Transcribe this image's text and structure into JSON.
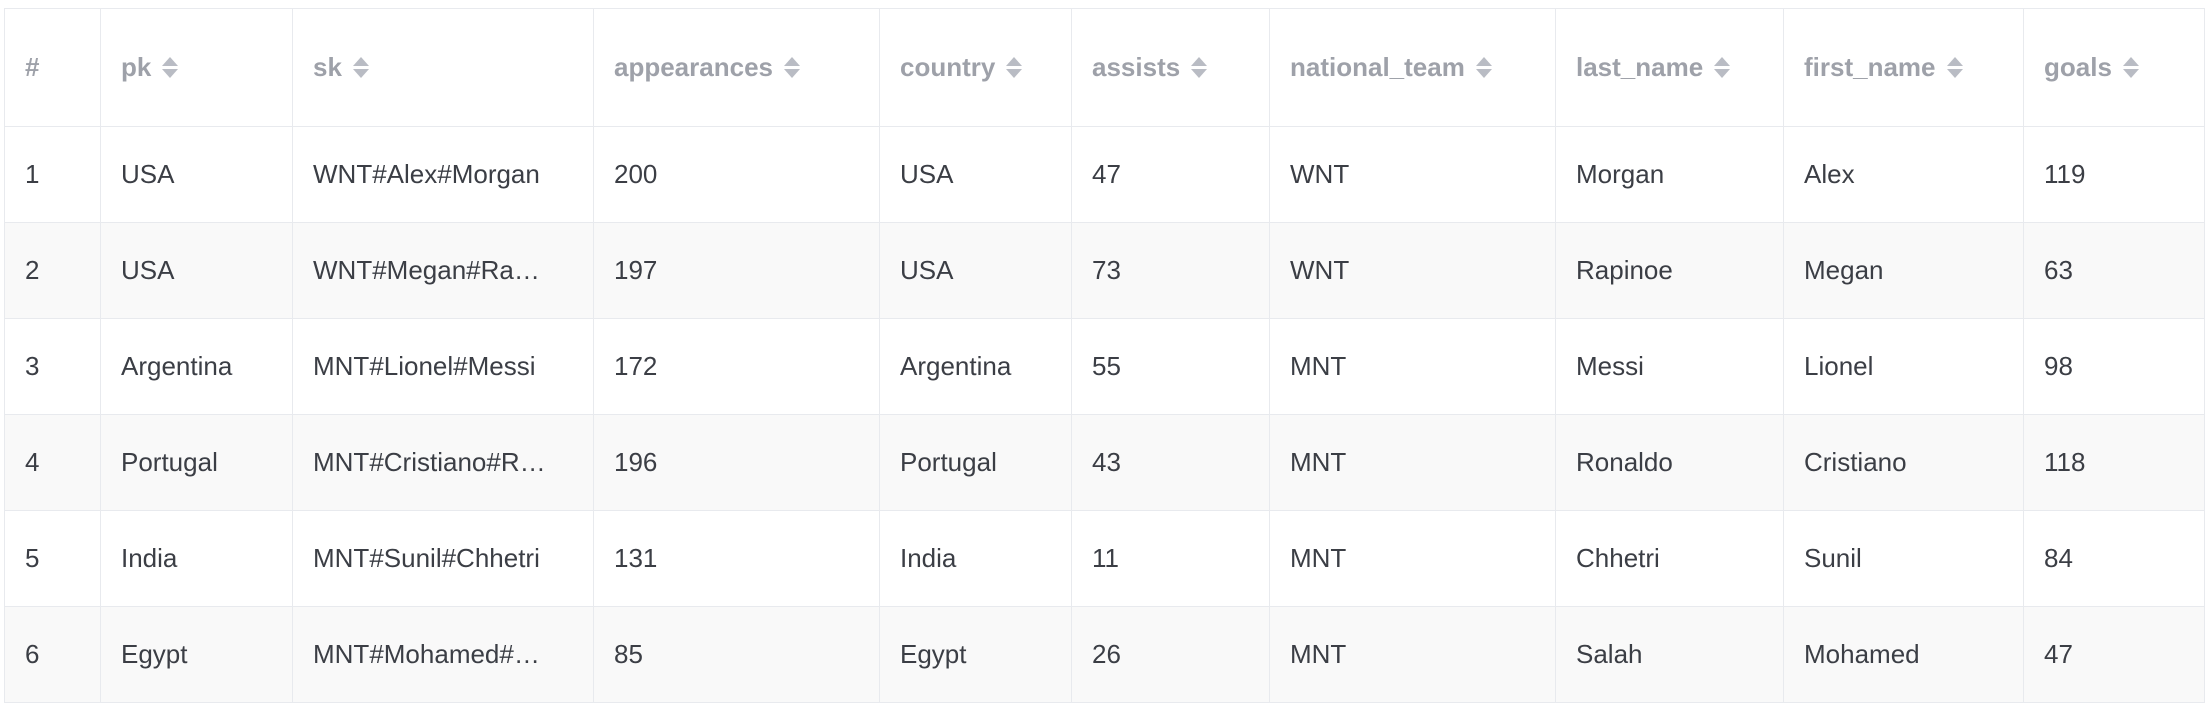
{
  "table": {
    "columns": [
      {
        "key": "index",
        "label": "#",
        "sortable": false
      },
      {
        "key": "pk",
        "label": "pk",
        "sortable": true
      },
      {
        "key": "sk",
        "label": "sk",
        "sortable": true
      },
      {
        "key": "appearances",
        "label": "appearances",
        "sortable": true
      },
      {
        "key": "country",
        "label": "country",
        "sortable": true
      },
      {
        "key": "assists",
        "label": "assists",
        "sortable": true
      },
      {
        "key": "national_team",
        "label": "national_team",
        "sortable": true
      },
      {
        "key": "last_name",
        "label": "last_name",
        "sortable": true
      },
      {
        "key": "first_name",
        "label": "first_name",
        "sortable": true
      },
      {
        "key": "goals",
        "label": "goals",
        "sortable": true
      }
    ],
    "rows": [
      [
        "1",
        "USA",
        "WNT#Alex#Morgan",
        "200",
        "USA",
        "47",
        "WNT",
        "Morgan",
        "Alex",
        "119"
      ],
      [
        "2",
        "USA",
        "WNT#Megan#Ra…",
        "197",
        "USA",
        "73",
        "WNT",
        "Rapinoe",
        "Megan",
        "63"
      ],
      [
        "3",
        "Argentina",
        "MNT#Lionel#Messi",
        "172",
        "Argentina",
        "55",
        "MNT",
        "Messi",
        "Lionel",
        "98"
      ],
      [
        "4",
        "Portugal",
        "MNT#Cristiano#R…",
        "196",
        "Portugal",
        "43",
        "MNT",
        "Ronaldo",
        "Cristiano",
        "118"
      ],
      [
        "5",
        "India",
        "MNT#Sunil#Chhetri",
        "131",
        "India",
        "11",
        "MNT",
        "Chhetri",
        "Sunil",
        "84"
      ],
      [
        "6",
        "Egypt",
        "MNT#Mohamed#…",
        "85",
        "Egypt",
        "26",
        "MNT",
        "Salah",
        "Mohamed",
        "47"
      ]
    ]
  },
  "icons": {
    "sort": "sort-icon"
  },
  "colors": {
    "header_text": "#9ea1a9",
    "cell_text": "#3b3e45",
    "border": "#e8eaee",
    "striped_row": "#f9f9f9",
    "sort_icon": "#b9bcc4"
  }
}
